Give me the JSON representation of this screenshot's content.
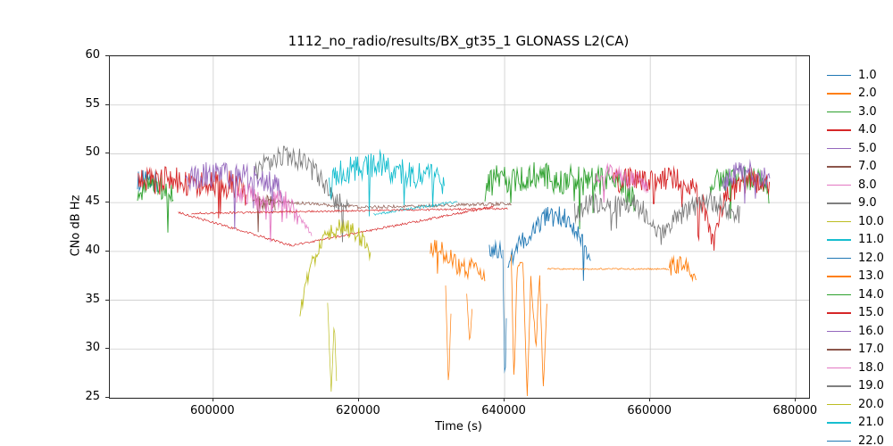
{
  "figure": {
    "background": "#ffffff"
  },
  "chart_data": {
    "type": "line",
    "title": "1112_no_radio/results/BX_gt35_1 GLONASS L2(CA)",
    "xlabel": "Time (s)",
    "ylabel": "CNo dB Hz",
    "xlim": [
      585800,
      681800
    ],
    "ylim": [
      25,
      60
    ],
    "x_ticks": [
      600000,
      620000,
      640000,
      660000,
      680000
    ],
    "y_ticks": [
      25,
      30,
      35,
      40,
      45,
      50,
      55,
      60
    ],
    "grid": true,
    "grid_color": "#cccccc",
    "spine_color": "#2b2b2b",
    "legend_position": "right",
    "legend": [
      {
        "label": "1.0",
        "color": "#1f77b4"
      },
      {
        "label": "2.0",
        "color": "#ff7f0e"
      },
      {
        "label": "3.0",
        "color": "#2ca02c"
      },
      {
        "label": "4.0",
        "color": "#d62728"
      },
      {
        "label": "5.0",
        "color": "#9467bd"
      },
      {
        "label": "7.0",
        "color": "#8c564b"
      },
      {
        "label": "8.0",
        "color": "#e377c2"
      },
      {
        "label": "9.0",
        "color": "#7f7f7f"
      },
      {
        "label": "10.0",
        "color": "#bcbd22"
      },
      {
        "label": "11.0",
        "color": "#17becf"
      },
      {
        "label": "12.0",
        "color": "#1f77b4"
      },
      {
        "label": "13.0",
        "color": "#ff7f0e"
      },
      {
        "label": "14.0",
        "color": "#2ca02c"
      },
      {
        "label": "15.0",
        "color": "#d62728"
      },
      {
        "label": "16.0",
        "color": "#9467bd"
      },
      {
        "label": "17.0",
        "color": "#8c564b"
      },
      {
        "label": "18.0",
        "color": "#e377c2"
      },
      {
        "label": "19.0",
        "color": "#7f7f7f"
      },
      {
        "label": "20.0",
        "color": "#bcbd22"
      },
      {
        "label": "21.0",
        "color": "#17becf"
      },
      {
        "label": "22.0",
        "color": "#1f77b4"
      }
    ],
    "series": [
      {
        "name": "1.0",
        "color": "#1f77b4",
        "segments": [
          {
            "noise": 1.1,
            "points": [
              [
                589600,
                47.3
              ],
              [
                592400,
                47.0
              ]
            ]
          }
        ]
      },
      {
        "name": "2.0",
        "color": "#ff7f0e",
        "segments": [
          {
            "noise": 1.0,
            "points": [
              [
                629800,
                40.6
              ],
              [
                631600,
                40.0
              ],
              [
                633200,
                38.8
              ],
              [
                634800,
                38.0
              ],
              [
                636200,
                38.6
              ],
              [
                637400,
                37.2
              ]
            ]
          },
          {
            "noise": 0.25,
            "lw": 0.7,
            "points": [
              [
                631900,
                36.5
              ],
              [
                632300,
                26.0
              ],
              [
                632700,
                35.0
              ]
            ]
          },
          {
            "noise": 0.25,
            "lw": 0.7,
            "points": [
              [
                634800,
                35.5
              ],
              [
                635200,
                30.5
              ],
              [
                635600,
                34.5
              ]
            ]
          }
        ]
      },
      {
        "name": "3.0",
        "color": "#2ca02c",
        "segments": [
          {
            "noise": 1.2,
            "points": [
              [
                589600,
                46.2
              ],
              [
                592000,
                46.8
              ],
              [
                594600,
                46.0
              ]
            ]
          }
        ]
      },
      {
        "name": "4.0",
        "color": "#d62728",
        "segments": [
          {
            "noise": 1.4,
            "points": [
              [
                589700,
                47.4
              ],
              [
                592000,
                47.0
              ],
              [
                594000,
                47.5
              ],
              [
                596500,
                46.8
              ],
              [
                599000,
                47.2
              ],
              [
                601500,
                46.8
              ],
              [
                603500,
                47.0
              ],
              [
                604600,
                45.8
              ]
            ]
          },
          {
            "noise": 0.12,
            "lw": 0.7,
            "points": [
              [
                595200,
                44.0
              ],
              [
                610800,
                40.6
              ],
              [
                638500,
                44.6
              ]
            ]
          }
        ]
      },
      {
        "name": "5.0",
        "color": "#9467bd",
        "segments": [
          {
            "noise": 1.3,
            "points": [
              [
                596200,
                47.2
              ],
              [
                598500,
                47.8
              ],
              [
                601000,
                48.0
              ],
              [
                603500,
                47.6
              ],
              [
                606000,
                47.8
              ],
              [
                608000,
                47.0
              ],
              [
                609600,
                45.8
              ]
            ]
          }
        ]
      },
      {
        "name": "7.0",
        "color": "#8c564b",
        "segments": [
          {
            "noise": 0.18,
            "lw": 0.7,
            "points": [
              [
                605400,
                45.3
              ],
              [
                620800,
                44.5
              ],
              [
                641000,
                44.9
              ]
            ]
          },
          {
            "noise": 0.8,
            "points": [
              [
                605800,
                45.2
              ],
              [
                608600,
                44.8
              ]
            ]
          }
        ]
      },
      {
        "name": "8.0",
        "color": "#e377c2",
        "segments": [
          {
            "noise": 1.1,
            "points": [
              [
                603200,
                46.0
              ],
              [
                605500,
                45.8
              ],
              [
                607200,
                44.2
              ],
              [
                608600,
                45.4
              ],
              [
                610400,
                45.0
              ],
              [
                611800,
                43.6
              ]
            ]
          },
          {
            "noise": 0.3,
            "lw": 0.7,
            "points": [
              [
                611800,
                43.6
              ],
              [
                613600,
                41.6
              ]
            ]
          }
        ]
      },
      {
        "name": "9.0",
        "color": "#7f7f7f",
        "segments": [
          {
            "noise": 1.2,
            "points": [
              [
                605600,
                47.6
              ],
              [
                607500,
                49.2
              ],
              [
                609500,
                49.8
              ],
              [
                611800,
                49.5
              ],
              [
                613800,
                48.2
              ],
              [
                615400,
                46.6
              ],
              [
                617000,
                45.2
              ],
              [
                618600,
                43.9
              ]
            ]
          }
        ]
      },
      {
        "name": "10.0",
        "color": "#bcbd22",
        "segments": [
          {
            "noise": 0.9,
            "points": [
              [
                611900,
                33.6
              ],
              [
                612600,
                36.4
              ],
              [
                613600,
                39.0
              ],
              [
                615000,
                41.0
              ],
              [
                616500,
                42.3
              ],
              [
                618000,
                42.6
              ],
              [
                619500,
                42.0
              ],
              [
                620600,
                41.0
              ],
              [
                621600,
                39.6
              ]
            ]
          },
          {
            "noise": 0.25,
            "lw": 0.7,
            "points": [
              [
                615700,
                34.8
              ],
              [
                616200,
                25.2
              ],
              [
                616600,
                33.0
              ],
              [
                617000,
                25.4
              ]
            ]
          }
        ]
      },
      {
        "name": "11.0",
        "color": "#17becf",
        "segments": [
          {
            "noise": 1.4,
            "points": [
              [
                615900,
                46.6
              ],
              [
                617600,
                48.0
              ],
              [
                620000,
                48.8
              ],
              [
                622500,
                49.0
              ],
              [
                625000,
                48.3
              ],
              [
                627500,
                47.8
              ],
              [
                630000,
                48.0
              ],
              [
                631800,
                46.8
              ]
            ]
          },
          {
            "noise": 0.15,
            "lw": 0.7,
            "points": [
              [
                622000,
                43.8
              ],
              [
                633600,
                45.1
              ]
            ]
          }
        ]
      },
      {
        "name": "12.0",
        "color": "#1f77b4",
        "segments": [
          {
            "noise": 0.8,
            "points": [
              [
                637900,
                40.2
              ],
              [
                639700,
                40.0
              ]
            ]
          },
          {
            "noise": 0.25,
            "lw": 0.7,
            "points": [
              [
                639750,
                40.0
              ],
              [
                640050,
                25.2
              ],
              [
                640350,
                38.0
              ]
            ]
          },
          {
            "noise": 1.0,
            "points": [
              [
                640400,
                38.6
              ],
              [
                642000,
                40.6
              ],
              [
                644000,
                42.5
              ],
              [
                646200,
                43.8
              ],
              [
                648200,
                43.5
              ],
              [
                649600,
                42.5
              ],
              [
                650800,
                40.6
              ],
              [
                651900,
                38.8
              ]
            ]
          }
        ]
      },
      {
        "name": "13.0",
        "color": "#ff7f0e",
        "segments": [
          {
            "noise": 0.5,
            "lw": 0.8,
            "points": [
              [
                640900,
                39.5
              ],
              [
                641300,
                26.0
              ],
              [
                641700,
                38.5
              ],
              [
                642500,
                39.0
              ],
              [
                643100,
                25.5
              ],
              [
                643600,
                37.5
              ],
              [
                644300,
                30.0
              ],
              [
                644800,
                38.0
              ],
              [
                645300,
                25.5
              ],
              [
                645900,
                36.2
              ]
            ]
          },
          {
            "noise": 0.08,
            "lw": 0.7,
            "points": [
              [
                645900,
                38.2
              ],
              [
                662600,
                38.2
              ]
            ]
          },
          {
            "noise": 0.9,
            "points": [
              [
                662600,
                38.3
              ],
              [
                664000,
                38.7
              ],
              [
                665400,
                38.2
              ],
              [
                666300,
                36.6
              ]
            ]
          }
        ]
      },
      {
        "name": "14.0",
        "color": "#2ca02c",
        "segments": [
          {
            "noise": 1.5,
            "points": [
              [
                637300,
                46.6
              ],
              [
                639200,
                47.5
              ],
              [
                641200,
                47.0
              ],
              [
                643200,
                47.6
              ],
              [
                645200,
                47.8
              ],
              [
                647200,
                47.2
              ],
              [
                649200,
                47.5
              ],
              [
                651200,
                47.0
              ],
              [
                653200,
                47.3
              ],
              [
                655200,
                47.0
              ],
              [
                656600,
                46.5
              ],
              [
                657900,
                45.2
              ]
            ]
          },
          {
            "noise": 1.3,
            "points": [
              [
                668200,
                47.0
              ],
              [
                670500,
                47.4
              ],
              [
                672500,
                47.6
              ],
              [
                674500,
                47.3
              ],
              [
                676300,
                46.2
              ]
            ]
          }
        ]
      },
      {
        "name": "15.0",
        "color": "#d62728",
        "segments": [
          {
            "noise": 0.1,
            "lw": 0.7,
            "points": [
              [
                597000,
                43.9
              ],
              [
                640500,
                44.4
              ]
            ]
          },
          {
            "noise": 1.2,
            "points": [
              [
                654900,
                47.0
              ],
              [
                657200,
                47.5
              ],
              [
                660000,
                47.2
              ],
              [
                663000,
                47.5
              ],
              [
                665200,
                46.8
              ],
              [
                666900,
                45.6
              ],
              [
                667900,
                42.6
              ],
              [
                668600,
                40.8
              ],
              [
                669400,
                43.0
              ],
              [
                670400,
                45.6
              ],
              [
                672200,
                47.0
              ],
              [
                674200,
                47.3
              ],
              [
                676400,
                46.4
              ]
            ]
          }
        ]
      },
      {
        "name": "16.0",
        "color": "#9467bd",
        "segments": [
          {
            "noise": 1.2,
            "points": [
              [
                669900,
                46.6
              ],
              [
                671500,
                48.0
              ],
              [
                673500,
                48.3
              ],
              [
                675300,
                47.8
              ],
              [
                676500,
                46.6
              ]
            ]
          }
        ]
      },
      {
        "name": "18.0",
        "color": "#e377c2",
        "segments": [
          {
            "noise": 1.0,
            "points": [
              [
                652400,
                47.5
              ],
              [
                654200,
                48.0
              ],
              [
                656200,
                47.8
              ],
              [
                658200,
                47.5
              ],
              [
                659700,
                46.9
              ]
            ]
          }
        ]
      },
      {
        "name": "19.0",
        "color": "#7f7f7f",
        "segments": [
          {
            "noise": 1.1,
            "points": [
              [
                649600,
                44.0
              ],
              [
                652000,
                45.0
              ],
              [
                655000,
                44.6
              ],
              [
                658000,
                44.8
              ],
              [
                660000,
                43.6
              ],
              [
                661600,
                41.6
              ],
              [
                663200,
                43.0
              ],
              [
                665200,
                44.5
              ],
              [
                668200,
                45.0
              ],
              [
                670600,
                44.5
              ],
              [
                672400,
                43.6
              ]
            ]
          }
        ]
      }
    ]
  }
}
